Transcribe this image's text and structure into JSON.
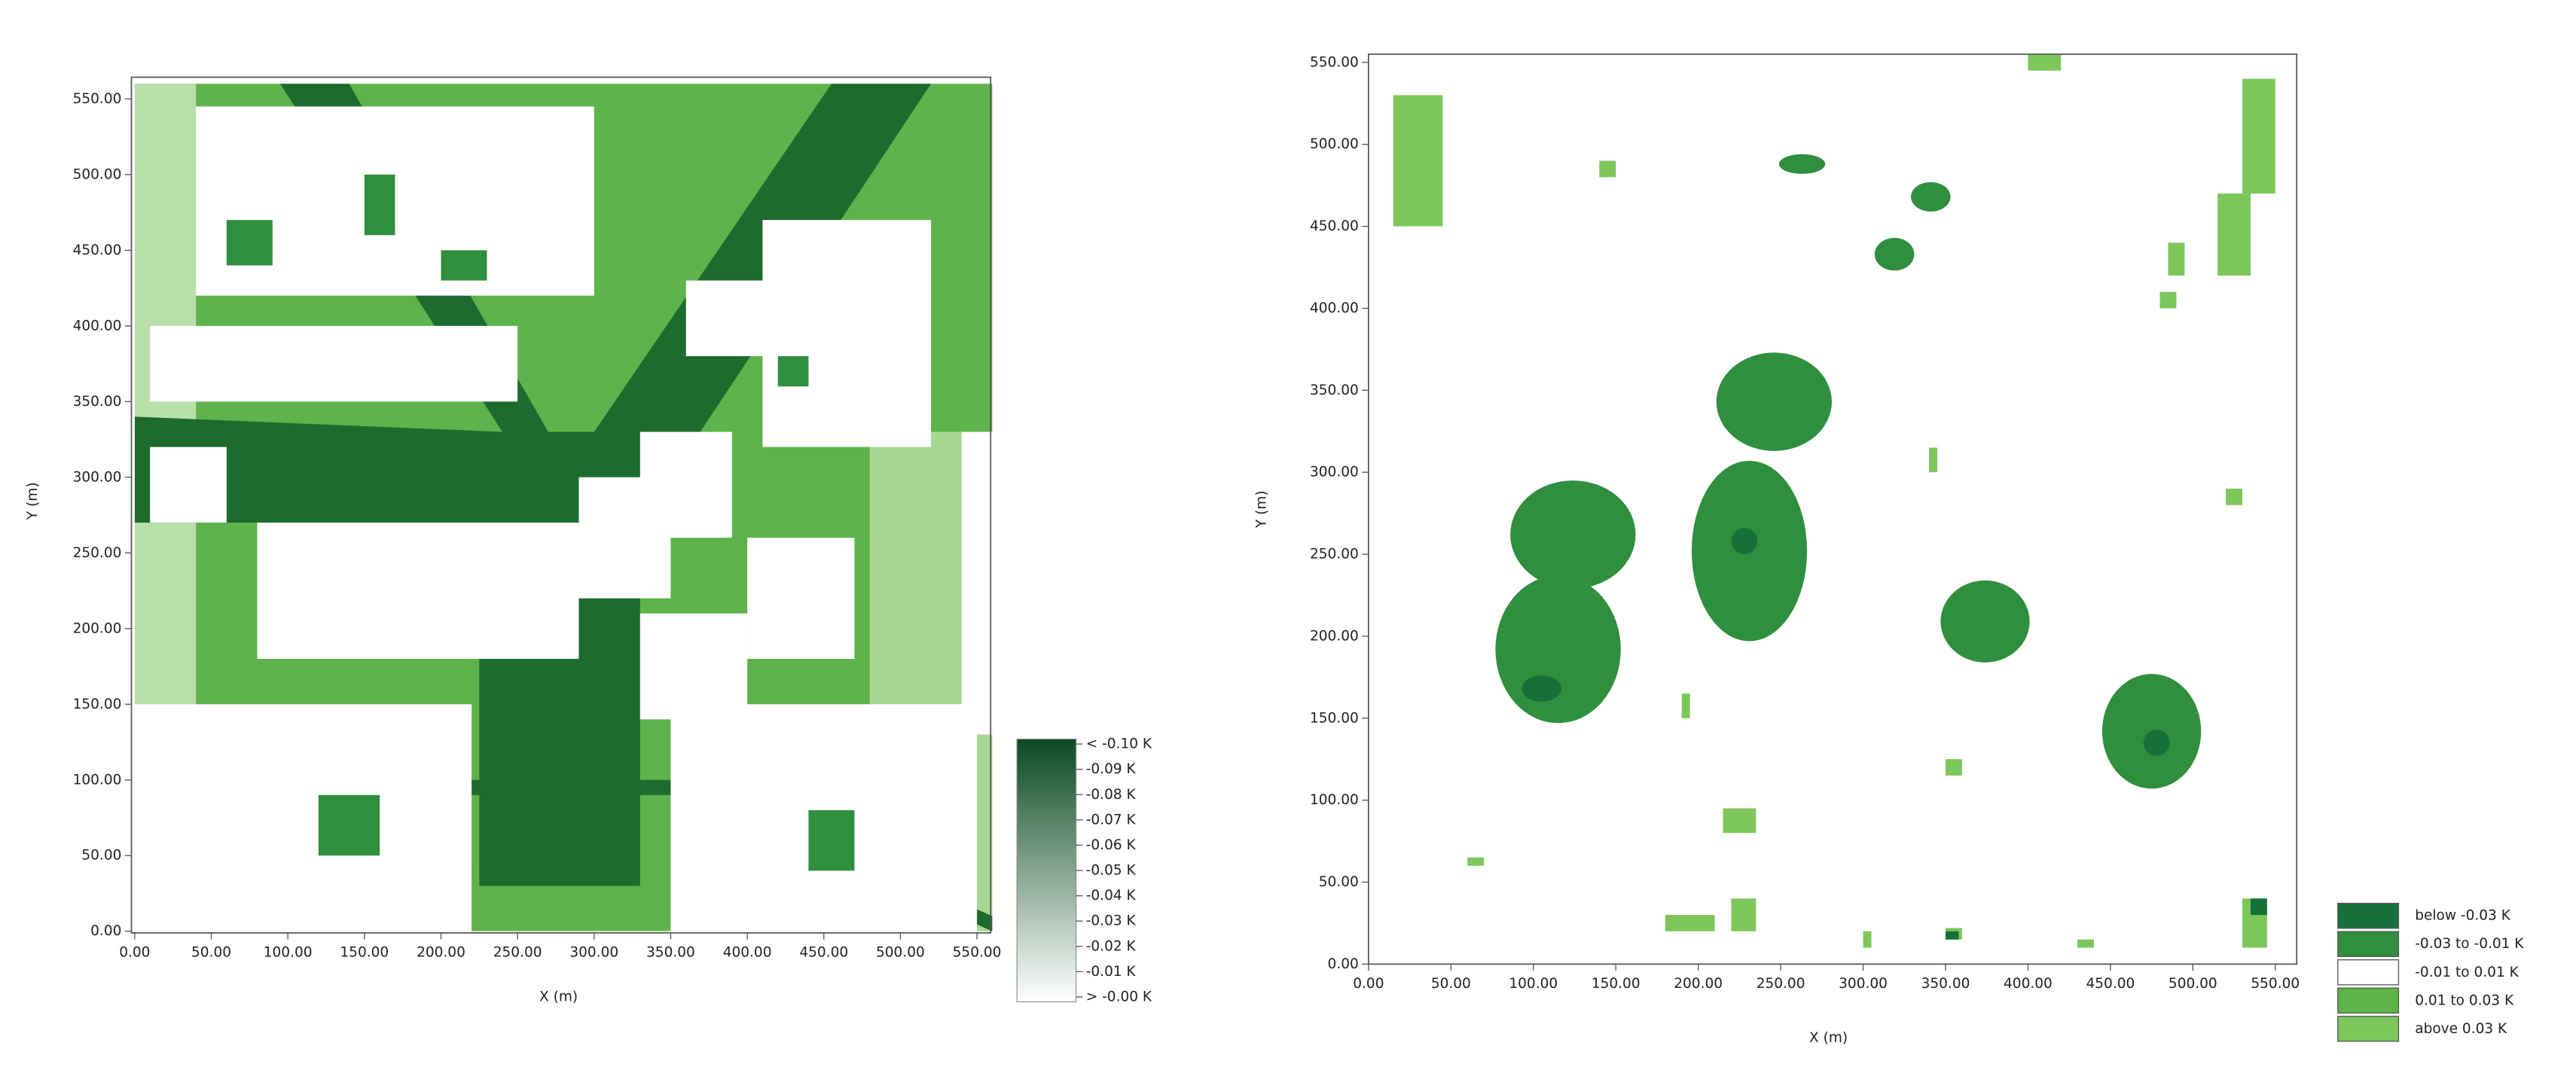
{
  "chart_data": [
    {
      "type": "raster-map",
      "x_label": "X (m)",
      "y_label": "Y (m)",
      "xlim": [
        0,
        560
      ],
      "ylim": [
        0,
        560
      ],
      "xticks": [
        {
          "value": 0,
          "label": "0.00"
        },
        {
          "value": 50,
          "label": "50.00"
        },
        {
          "value": 100,
          "label": "100.00"
        },
        {
          "value": 150,
          "label": "150.00"
        },
        {
          "value": 200,
          "label": "200.00"
        },
        {
          "value": 250,
          "label": "250.00"
        },
        {
          "value": 300,
          "label": "300.00"
        },
        {
          "value": 350,
          "label": "350.00"
        },
        {
          "value": 400,
          "label": "400.00"
        },
        {
          "value": 450,
          "label": "450.00"
        },
        {
          "value": 500,
          "label": "500.00"
        },
        {
          "value": 550,
          "label": "550.00"
        }
      ],
      "yticks": [
        {
          "value": 0,
          "label": "0.00"
        },
        {
          "value": 50,
          "label": "50.00"
        },
        {
          "value": 100,
          "label": "100.00"
        },
        {
          "value": 150,
          "label": "150.00"
        },
        {
          "value": 200,
          "label": "200.00"
        },
        {
          "value": 250,
          "label": "250.00"
        },
        {
          "value": 300,
          "label": "300.00"
        },
        {
          "value": 350,
          "label": "350.00"
        },
        {
          "value": 400,
          "label": "400.00"
        },
        {
          "value": 450,
          "label": "450.00"
        },
        {
          "value": 500,
          "label": "500.00"
        },
        {
          "value": 550,
          "label": "550.00"
        }
      ],
      "legend": {
        "style": "colorbar",
        "labels": [
          "< -0.10 K",
          "-0.09 K",
          "-0.08 K",
          "-0.07 K",
          "-0.06 K",
          "-0.05 K",
          "-0.04 K",
          "-0.03 K",
          "-0.02 K",
          "-0.01 K",
          "> -0.00 K"
        ],
        "colors": [
          "#0b4a22",
          "#ffffff"
        ]
      }
    },
    {
      "type": "raster-map",
      "x_label": "X (m)",
      "y_label": "Y (m)",
      "xlim": [
        0,
        560
      ],
      "ylim": [
        0,
        560
      ],
      "xticks": [
        {
          "value": 0,
          "label": "0.00"
        },
        {
          "value": 50,
          "label": "50.00"
        },
        {
          "value": 100,
          "label": "100.00"
        },
        {
          "value": 150,
          "label": "150.00"
        },
        {
          "value": 200,
          "label": "200.00"
        },
        {
          "value": 250,
          "label": "250.00"
        },
        {
          "value": 300,
          "label": "300.00"
        },
        {
          "value": 350,
          "label": "350.00"
        },
        {
          "value": 400,
          "label": "400.00"
        },
        {
          "value": 450,
          "label": "450.00"
        },
        {
          "value": 500,
          "label": "500.00"
        },
        {
          "value": 550,
          "label": "550.00"
        }
      ],
      "yticks": [
        {
          "value": 0,
          "label": "0.00"
        },
        {
          "value": 50,
          "label": "50.00"
        },
        {
          "value": 100,
          "label": "100.00"
        },
        {
          "value": 150,
          "label": "150.00"
        },
        {
          "value": 200,
          "label": "200.00"
        },
        {
          "value": 250,
          "label": "250.00"
        },
        {
          "value": 300,
          "label": "300.00"
        },
        {
          "value": 350,
          "label": "350.00"
        },
        {
          "value": 400,
          "label": "400.00"
        },
        {
          "value": 450,
          "label": "450.00"
        },
        {
          "value": 500,
          "label": "500.00"
        },
        {
          "value": 550,
          "label": "550.00"
        }
      ],
      "legend": {
        "style": "classes",
        "labels": [
          "below -0.03 K",
          "-0.03 to -0.01 K",
          "-0.01 to 0.01 K",
          "0.01 to 0.03 K",
          "above 0.03 K"
        ],
        "colors": [
          "#17703a",
          "#2f8f3e",
          "#ffffff",
          "#5db548",
          "#7cc65a"
        ]
      }
    }
  ]
}
